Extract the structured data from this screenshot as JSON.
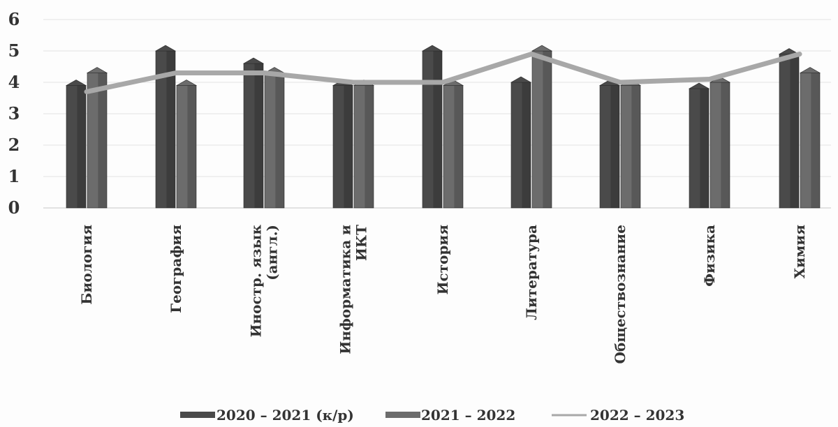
{
  "chart_data": {
    "type": "bar",
    "title": "",
    "xlabel": "",
    "ylabel": "",
    "ylim": [
      0,
      6
    ],
    "yticks": [
      0,
      1,
      2,
      3,
      4,
      5,
      6
    ],
    "grid": true,
    "legend_position": "bottom",
    "categories": [
      [
        "Биология"
      ],
      [
        "География"
      ],
      [
        "Иностр. язык",
        "(англ.)"
      ],
      [
        "Информатика и",
        "ИКТ"
      ],
      [
        "История"
      ],
      [
        "Литература"
      ],
      [
        "Обществознание"
      ],
      [
        "Физика"
      ],
      [
        "Химия"
      ]
    ],
    "series": [
      {
        "name": "2020 – 2021 (к/р)",
        "kind": "bar",
        "color": "#4a4a4a",
        "values": [
          3.9,
          5.0,
          4.6,
          3.9,
          5.0,
          4.0,
          3.9,
          3.8,
          4.9
        ]
      },
      {
        "name": "2021 – 2022",
        "kind": "bar",
        "color": "#6c6c6c",
        "values": [
          4.3,
          3.9,
          4.3,
          3.9,
          3.9,
          5.0,
          3.9,
          4.0,
          4.3
        ]
      },
      {
        "name": "2022 – 2023",
        "kind": "line",
        "color": "#a8a8a8",
        "values": [
          3.7,
          4.3,
          4.3,
          4.0,
          4.0,
          4.9,
          4.0,
          4.1,
          4.9
        ]
      }
    ]
  }
}
